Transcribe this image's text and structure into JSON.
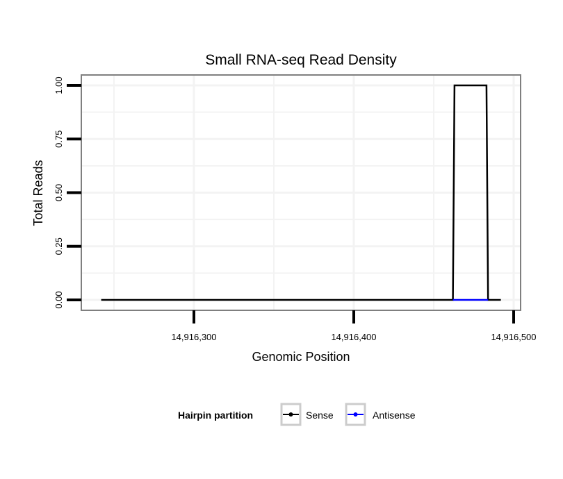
{
  "chart_data": {
    "type": "line",
    "title": "Small RNA-seq Read Density",
    "xlabel": "Genomic Position",
    "ylabel": "Total Reads",
    "xlim": [
      14916230,
      14916505
    ],
    "ylim": [
      -0.05,
      1.05
    ],
    "xticks": [
      14916300,
      14916400,
      14916500
    ],
    "xtick_labels": [
      "14,916,300",
      "14,916,400",
      "14,916,500"
    ],
    "yticks": [
      0,
      0.25,
      0.5,
      0.75,
      1
    ],
    "ytick_labels": [
      "0.00",
      "0.25",
      "0.50",
      "0.75",
      "1.00"
    ],
    "grid": true,
    "legend": {
      "title": "Hairpin partition",
      "placement": "bottom"
    },
    "series": [
      {
        "name": "Sense",
        "color": "#000000",
        "x": [
          14916242,
          14916462,
          14916463,
          14916483,
          14916484,
          14916492
        ],
        "y": [
          0,
          0,
          1,
          1,
          0,
          0
        ]
      },
      {
        "name": "Antisense",
        "color": "#0000ff",
        "x": [
          14916462,
          14916484
        ],
        "y": [
          0,
          0
        ]
      }
    ]
  }
}
